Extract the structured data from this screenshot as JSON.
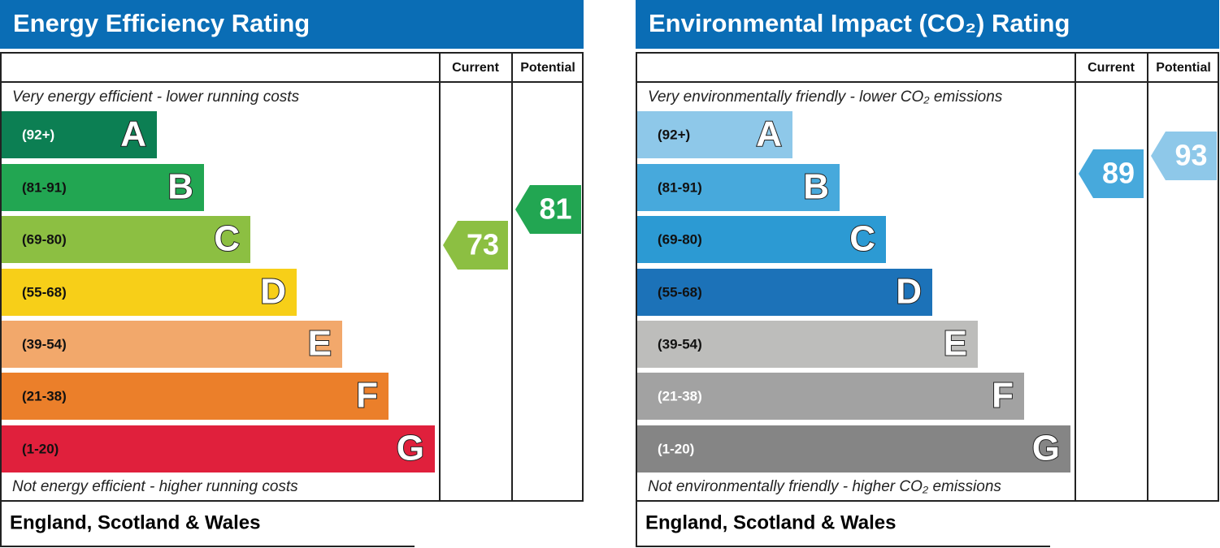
{
  "chart_data": [
    {
      "type": "rating",
      "title": "Energy Efficiency Rating",
      "title_color": "#0a6db5",
      "columns": [
        "Current",
        "Potential"
      ],
      "top_note": "Very energy efficient - lower running costs",
      "bottom_note": "Not energy efficient - higher running costs",
      "footer": "England, Scotland & Wales",
      "bands": [
        {
          "letter": "A",
          "range": "(92+)",
          "color": "#0c7f53",
          "label_color": "#ffffff"
        },
        {
          "letter": "B",
          "range": "(81-91)",
          "color": "#22a652",
          "label_color": "#111111"
        },
        {
          "letter": "C",
          "range": "(69-80)",
          "color": "#8cbf42",
          "label_color": "#111111"
        },
        {
          "letter": "D",
          "range": "(55-68)",
          "color": "#f7cf18",
          "label_color": "#111111"
        },
        {
          "letter": "E",
          "range": "(39-54)",
          "color": "#f2a86b",
          "label_color": "#111111"
        },
        {
          "letter": "F",
          "range": "(21-38)",
          "color": "#eb7f2a",
          "label_color": "#111111"
        },
        {
          "letter": "G",
          "range": "(1-20)",
          "color": "#e0203c",
          "label_color": "#111111"
        }
      ],
      "current": 73,
      "potential": 81
    },
    {
      "type": "rating",
      "title": "Environmental Impact (CO₂) Rating",
      "title_color": "#0a6db5",
      "columns": [
        "Current",
        "Potential"
      ],
      "top_note": "Very environmentally friendly - lower CO₂ emissions",
      "bottom_note": "Not environmentally friendly - higher CO₂ emissions",
      "footer": "England, Scotland & Wales",
      "bands": [
        {
          "letter": "A",
          "range": "(92+)",
          "color": "#8ec8e9",
          "label_color": "#111111"
        },
        {
          "letter": "B",
          "range": "(81-91)",
          "color": "#47a9dc",
          "label_color": "#111111"
        },
        {
          "letter": "C",
          "range": "(69-80)",
          "color": "#2c9ad3",
          "label_color": "#111111"
        },
        {
          "letter": "D",
          "range": "(55-68)",
          "color": "#1c72b8",
          "label_color": "#111111"
        },
        {
          "letter": "E",
          "range": "(39-54)",
          "color": "#bdbdbb",
          "label_color": "#111111"
        },
        {
          "letter": "F",
          "range": "(21-38)",
          "color": "#a2a2a2",
          "label_color": "#ffffff"
        },
        {
          "letter": "G",
          "range": "(1-20)",
          "color": "#858585",
          "label_color": "#ffffff"
        }
      ],
      "current": 89,
      "potential": 93
    }
  ]
}
